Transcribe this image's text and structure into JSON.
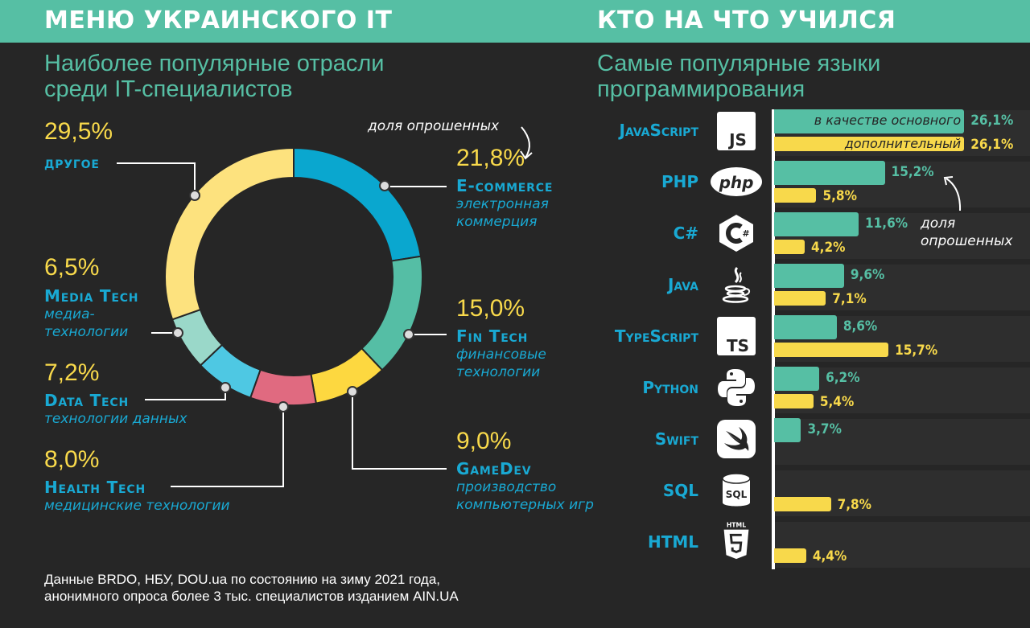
{
  "left": {
    "header": "МЕНЮ УКРАИНСКОГО IT",
    "subtitle_line1": "Наиболее популярные отрасли",
    "subtitle_line2": "среди IT-специалистов",
    "note": "доля опрошенных"
  },
  "right": {
    "header": "КТО НА ЧТО УЧИЛСЯ",
    "subtitle_line1": "Самые популярные языки",
    "subtitle_line2": "программирования",
    "legend_primary": "в качестве основного",
    "legend_secondary": "дополнительный",
    "note_line1": "доля",
    "note_line2": "опрошенных"
  },
  "footer": {
    "line1": "Данные BRDO, НБУ, DOU.ua по состоянию на зиму 2021 года,",
    "line2": "анонимного опроса более 3 тыс. специалистов изданием AIN.UA"
  },
  "chart_data": [
    {
      "type": "pie",
      "labels": [
        "E-commerce",
        "Fin Tech",
        "GameDev",
        "Health Tech",
        "Data Tech",
        "Media Tech",
        "другое"
      ],
      "descriptions": [
        "электронная коммерция",
        "финансовые технологии",
        "производство компьютерных игр",
        "медицинские технологии",
        "технологии данных",
        "медиа-технологии",
        ""
      ],
      "values": [
        21.8,
        15.0,
        9.0,
        8.0,
        7.2,
        6.5,
        29.5
      ],
      "value_labels": [
        "21,8%",
        "15,0%",
        "9,0%",
        "8,0%",
        "7,2%",
        "6,5%",
        "29,5%"
      ],
      "colors": [
        "#0aa7cf",
        "#55bea5",
        "#fdd840",
        "#e06a80",
        "#4ec8e3",
        "#9ad8c9",
        "#fde27e"
      ],
      "donut": true
    },
    {
      "type": "bar",
      "orientation": "horizontal",
      "categories": [
        "JavaScript",
        "PHP",
        "C#",
        "Java",
        "TypeScript",
        "Python",
        "Swift",
        "SQL",
        "HTML"
      ],
      "icons": [
        "js-icon",
        "php-icon",
        "csharp-icon",
        "java-icon",
        "ts-icon",
        "python-icon",
        "swift-icon",
        "sql-icon",
        "html5-icon"
      ],
      "series": [
        {
          "name": "в качестве основного",
          "values": [
            26.1,
            15.2,
            11.6,
            9.6,
            8.6,
            6.2,
            3.7,
            null,
            null
          ],
          "labels": [
            "26,1%",
            "15,2%",
            "11,6%",
            "9,6%",
            "8,6%",
            "6,2%",
            "3,7%",
            "",
            ""
          ],
          "color": "#56bfa4"
        },
        {
          "name": "дополнительный",
          "values": [
            26.1,
            5.8,
            4.2,
            7.1,
            15.7,
            5.4,
            null,
            7.8,
            4.4
          ],
          "labels": [
            "26,1%",
            "5,8%",
            "4,2%",
            "7,1%",
            "15,7%",
            "5,4%",
            "",
            "7,8%",
            "4,4%"
          ],
          "color": "#f8d94b"
        }
      ]
    }
  ]
}
